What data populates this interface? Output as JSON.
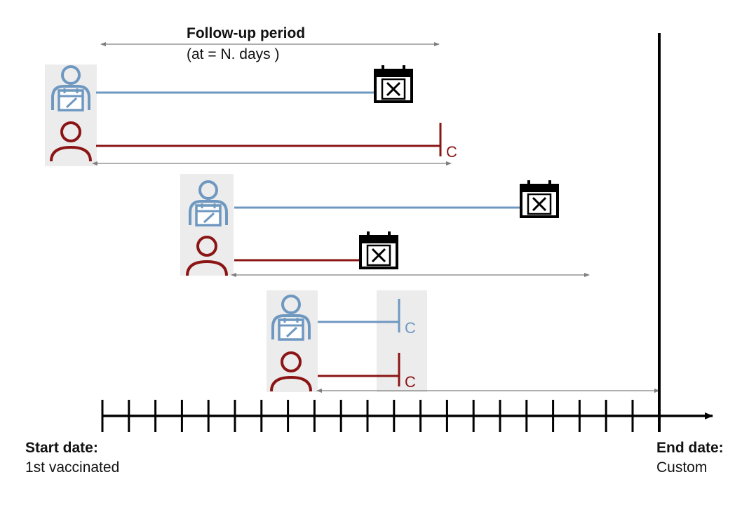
{
  "follow_up": {
    "title": "Follow-up period",
    "subtitle": "(at = N. days )"
  },
  "censor_mark": "C",
  "axis": {
    "start_label": "Start date:",
    "start_value": "1st vaccinated",
    "end_label": "End date:",
    "end_value": "Custom"
  },
  "colors": {
    "vaccinated": "#6f98c1",
    "unvaccinated": "#8b1515",
    "event": "#000000",
    "axis": "#000000",
    "shade": "#ececec",
    "arrow": "#7f7f7f"
  },
  "pairs": [
    {
      "vaccinated": {
        "outcome": "event"
      },
      "unvaccinated": {
        "outcome": "censored"
      }
    },
    {
      "vaccinated": {
        "outcome": "event"
      },
      "unvaccinated": {
        "outcome": "event"
      }
    },
    {
      "vaccinated": {
        "outcome": "censored"
      },
      "unvaccinated": {
        "outcome": "censored"
      }
    }
  ],
  "icons": {
    "vaccinated": "vaccinated-person-icon",
    "unvaccinated": "person-icon",
    "event": "calendar-x-icon"
  }
}
